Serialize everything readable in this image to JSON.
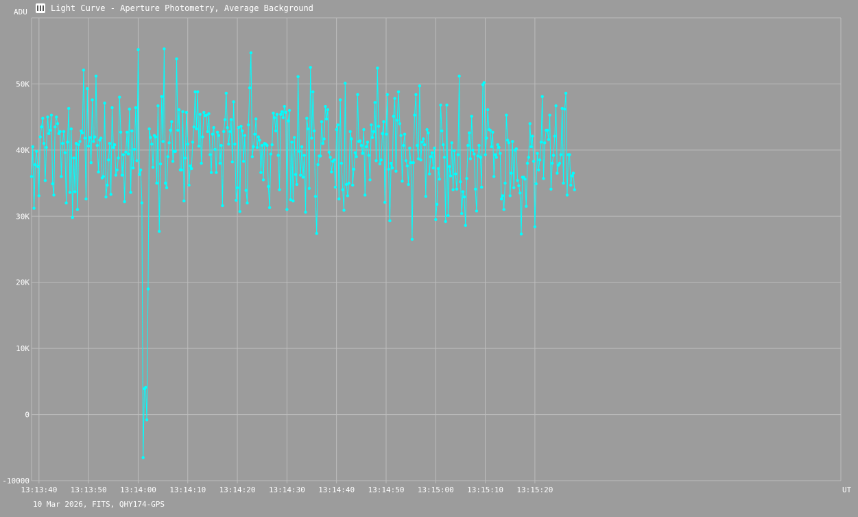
{
  "window": {
    "title": "Light Curve - Aperture Photometry, Average Background",
    "footer": "10 Mar 2026, FITS, QHY174-GPS"
  },
  "colors": {
    "background": "#9c9c9c",
    "grid": "#bdbdbd",
    "series": "#00ffff",
    "text": "#ffffff"
  },
  "chart_data": {
    "type": "line",
    "ylabel": "ADU",
    "xlabel": "UT",
    "ylim": [
      -10000,
      60000
    ],
    "xlim_seconds": [
      218.5,
      381.7
    ],
    "x_start": "13:13:38.5",
    "y_ticks": [
      {
        "value": -10000,
        "label": "-10000"
      },
      {
        "value": 0,
        "label": "0"
      },
      {
        "value": 10000,
        "label": "10K"
      },
      {
        "value": 20000,
        "label": "20K"
      },
      {
        "value": 30000,
        "label": "30K"
      },
      {
        "value": 40000,
        "label": "40K"
      },
      {
        "value": 50000,
        "label": "50K"
      }
    ],
    "x_ticks": [
      {
        "value": 220,
        "label": "13:13:40"
      },
      {
        "value": 230,
        "label": "13:13:50"
      },
      {
        "value": 240,
        "label": "13:14:00"
      },
      {
        "value": 250,
        "label": "13:14:10"
      },
      {
        "value": 260,
        "label": "13:14:20"
      },
      {
        "value": 270,
        "label": "13:14:30"
      },
      {
        "value": 280,
        "label": "13:14:40"
      },
      {
        "value": 290,
        "label": "13:14:50"
      },
      {
        "value": 300,
        "label": "13:15:00"
      },
      {
        "value": 310,
        "label": "13:15:10"
      },
      {
        "value": 320,
        "label": "13:15:20"
      }
    ],
    "grid": true,
    "series": [
      {
        "x_start": 218.5,
        "x_step": 0.25,
        "values": [
          36000,
          40500,
          31200,
          37800,
          39800,
          37500,
          33100,
          42000,
          43500,
          44800,
          41000,
          35400,
          40400,
          45000,
          42500,
          43000,
          45300,
          34900,
          33200,
          43500,
          45000,
          44000,
          42500,
          42800,
          36000,
          41000,
          42800,
          39600,
          32000,
          41200,
          46300,
          33600,
          43200,
          29800,
          38800,
          33700,
          41000,
          31000,
          40800,
          41300,
          42900,
          42600,
          52100,
          41800,
          32600,
          49300,
          40600,
          41900,
          38100,
          47600,
          41300,
          42000,
          51200,
          40700,
          36700,
          41500,
          41800,
          35800,
          36000,
          47100,
          32900,
          34700,
          38500,
          41000,
          33300,
          46400,
          40400,
          40800,
          36200,
          37000,
          38800,
          48000,
          42700,
          36200,
          39300,
          32200,
          39700,
          42700,
          39400,
          46200,
          33600,
          42900,
          37300,
          40100,
          46400,
          38400,
          55200,
          36300,
          37000,
          32000,
          -6500,
          3900,
          4100,
          -800,
          19000,
          43200,
          41900,
          40900,
          37400,
          42200,
          42000,
          35000,
          46700,
          27700,
          37900,
          48100,
          41300,
          55300,
          35000,
          34300,
          39000,
          41100,
          43000,
          44300,
          38300,
          39800,
          39800,
          53800,
          43000,
          46100,
          37000,
          37000,
          45800,
          32300,
          38800,
          45700,
          40900,
          34700,
          37600,
          37200,
          41200,
          43500,
          48800,
          43200,
          48800,
          40600,
          45400,
          38000,
          42000,
          45700,
          45200,
          45300,
          42800,
          45500,
          39300,
          36600,
          42400,
          43400,
          40100,
          36600,
          42700,
          42200,
          38000,
          40700,
          31600,
          42800,
          44600,
          48600,
          43400,
          40900,
          42800,
          44600,
          38200,
          47300,
          40900,
          32400,
          34300,
          43400,
          30700,
          43600,
          42900,
          38300,
          42200,
          33900,
          32000,
          43800,
          49400,
          54700,
          39000,
          40500,
          42400,
          44700,
          40400,
          42000,
          41500,
          36600,
          40700,
          35500,
          41000,
          40900,
          40700,
          34500,
          31300,
          39400,
          40800,
          45600,
          44900,
          42900,
          45400,
          39200,
          34000,
          45400,
          45800,
          44900,
          46600,
          45700,
          31000,
          44400,
          46000,
          32500,
          41200,
          32300,
          41900,
          36300,
          34800,
          51100,
          39800,
          36200,
          40500,
          35900,
          39200,
          30600,
          44800,
          43200,
          34200,
          52500,
          41800,
          48800,
          42900,
          33000,
          27400,
          37800,
          39100,
          39100,
          44300,
          41000,
          41700,
          46600,
          44700,
          46100,
          39700,
          38900,
          36700,
          38300,
          38500,
          34400,
          43100,
          43800,
          32600,
          47600,
          38000,
          34000,
          30900,
          50100,
          34800,
          33100,
          35000,
          42800,
          41700,
          34700,
          37100,
          39600,
          39000,
          48400,
          41300,
          41400,
          40700,
          39500,
          43100,
          33200,
          40500,
          41200,
          39200,
          35500,
          43800,
          41900,
          42800,
          47200,
          38400,
          52400,
          43600,
          37900,
          38500,
          42500,
          44300,
          32100,
          42400,
          48400,
          37100,
          29300,
          38000,
          37300,
          45100,
          47800,
          36800,
          44500,
          48800,
          44000,
          42200,
          35300,
          40700,
          42400,
          38400,
          37600,
          34800,
          40300,
          38100,
          26500,
          38100,
          45300,
          48400,
          40700,
          38700,
          49700,
          38500,
          41200,
          41700,
          40800,
          33000,
          43100,
          42600,
          36400,
          39000,
          39600,
          37300,
          40300,
          29500,
          31800,
          37200,
          35600,
          46800,
          42900,
          40800,
          38900,
          29200,
          46800,
          30100,
          37500,
          36100,
          41100,
          34000,
          39900,
          36400,
          34100,
          39300,
          51200,
          35200,
          30400,
          33700,
          32900,
          28600,
          35700,
          40700,
          42600,
          38700,
          45100,
          40000,
          39400,
          34100,
          30800,
          39100,
          40700,
          38900,
          34400,
          49900,
          50200,
          39300,
          41800,
          46100,
          43100,
          43000,
          40500,
          42700,
          36000,
          39300,
          38900,
          40800,
          40400,
          39500,
          32600,
          33100,
          31000,
          35000,
          45300,
          41500,
          41100,
          33100,
          36500,
          41300,
          34300,
          40000,
          40200,
          35400,
          34600,
          33500,
          27300,
          35900,
          35900,
          35600,
          31500,
          38000,
          38900,
          44000,
          40500,
          42100,
          38300,
          28400,
          34900,
          39500,
          37000,
          38500,
          41200,
          48100,
          35700,
          41100,
          43000,
          43000,
          41600,
          45300,
          34100,
          38000,
          39200,
          42100,
          46700,
          36500,
          37700,
          38000,
          39300,
          46300,
          35000,
          46200,
          48600,
          33200,
          39300,
          39300,
          34700,
          36100,
          36500,
          34000
        ]
      }
    ]
  }
}
